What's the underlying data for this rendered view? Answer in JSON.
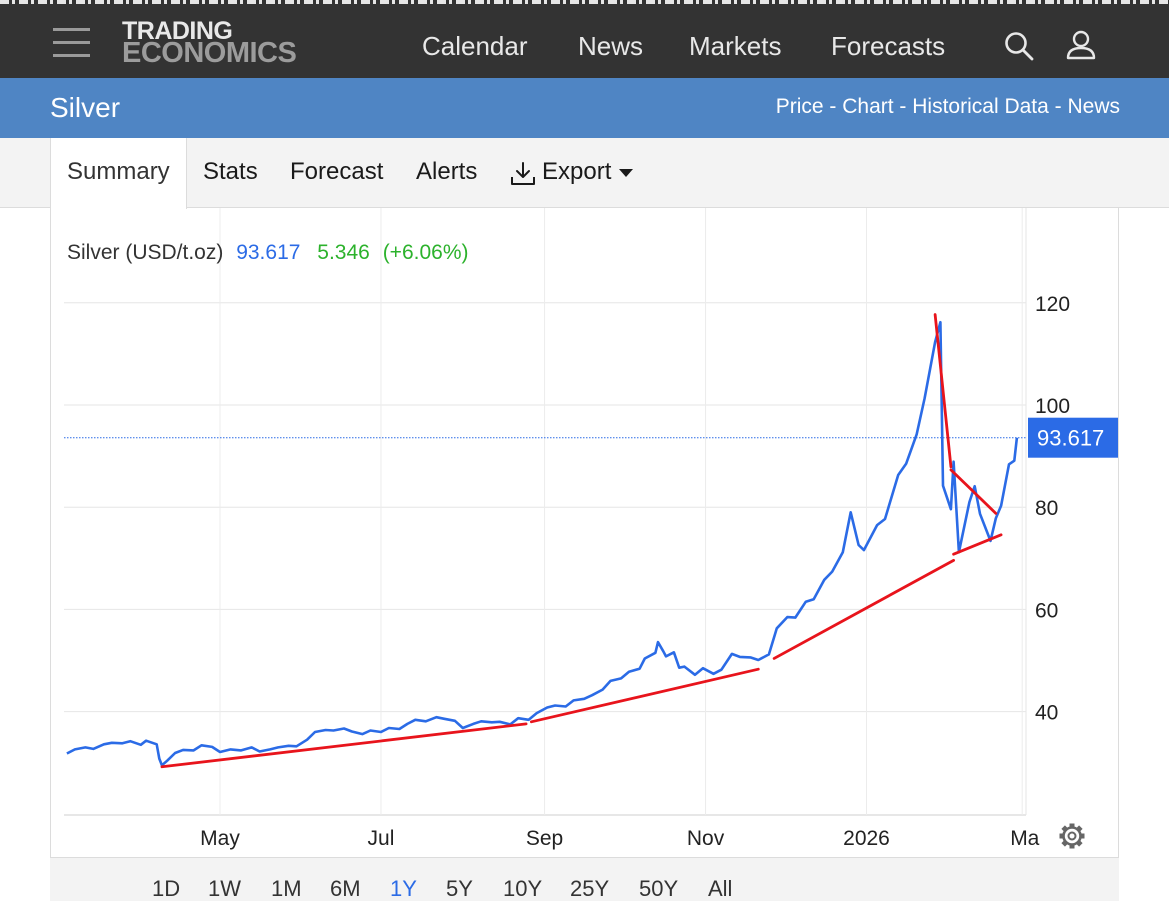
{
  "header": {
    "logo_line1": "TRADING",
    "logo_line2": "ECONOMICS",
    "nav": [
      "Calendar",
      "News",
      "Markets",
      "Forecasts"
    ],
    "icons": [
      "menu-icon",
      "search-icon",
      "user-icon"
    ]
  },
  "titlebar": {
    "title": "Silver",
    "crumbs": [
      "Price",
      "Chart",
      "Historical Data",
      "News"
    ],
    "separator": " - "
  },
  "tabs": {
    "items": [
      "Summary",
      "Stats",
      "Forecast",
      "Alerts",
      "Export"
    ],
    "active": "Summary"
  },
  "range_buttons": {
    "items": [
      "1D",
      "1W",
      "1M",
      "6M",
      "1Y",
      "5Y",
      "10Y",
      "25Y",
      "50Y",
      "All"
    ],
    "active": "1Y"
  },
  "colors": {
    "line": "#2b6be6",
    "trend": "#e8141c",
    "header_bg": "#333333",
    "titlebar_bg": "#4f85c4",
    "change_positive": "#2cb22c"
  },
  "chart_data": {
    "type": "line",
    "legend": {
      "series_label": "Silver (USD/t.oz)",
      "last": "93.617",
      "change": "5.346",
      "change_pct": "(+6.06%)"
    },
    "last_value_label": "93.617",
    "x_axis": {
      "ticks": [
        {
          "date": "2025-05-01",
          "label": "May"
        },
        {
          "date": "2025-07-01",
          "label": "Jul"
        },
        {
          "date": "2025-09-01",
          "label": "Sep"
        },
        {
          "date": "2025-11-01",
          "label": "Nov"
        },
        {
          "date": "2026-01-01",
          "label": "2026"
        },
        {
          "date": "2026-03-01",
          "label": "Ma"
        }
      ],
      "range": [
        "2025-03-01",
        "2026-03-01"
      ]
    },
    "y_axis": {
      "ticks": [
        40,
        60,
        80,
        100,
        120
      ],
      "range": [
        20,
        140
      ],
      "position": "right",
      "grid": true
    },
    "series": [
      {
        "points": [
          [
            "2025-03-04",
            31.8
          ],
          [
            "2025-03-07",
            32.6
          ],
          [
            "2025-03-11",
            33.0
          ],
          [
            "2025-03-14",
            32.7
          ],
          [
            "2025-03-18",
            33.6
          ],
          [
            "2025-03-21",
            33.9
          ],
          [
            "2025-03-25",
            33.8
          ],
          [
            "2025-03-28",
            34.2
          ],
          [
            "2025-04-01",
            33.5
          ],
          [
            "2025-04-03",
            34.3
          ],
          [
            "2025-04-07",
            33.6
          ],
          [
            "2025-04-08",
            30.8
          ],
          [
            "2025-04-09",
            29.5
          ],
          [
            "2025-04-11",
            30.4
          ],
          [
            "2025-04-14",
            31.9
          ],
          [
            "2025-04-17",
            32.5
          ],
          [
            "2025-04-21",
            32.4
          ],
          [
            "2025-04-24",
            33.4
          ],
          [
            "2025-04-28",
            33.1
          ],
          [
            "2025-05-01",
            32.1
          ],
          [
            "2025-05-05",
            32.6
          ],
          [
            "2025-05-09",
            32.4
          ],
          [
            "2025-05-13",
            33.0
          ],
          [
            "2025-05-16",
            32.2
          ],
          [
            "2025-05-20",
            32.6
          ],
          [
            "2025-05-23",
            33.0
          ],
          [
            "2025-05-27",
            33.3
          ],
          [
            "2025-05-30",
            33.2
          ],
          [
            "2025-06-03",
            34.5
          ],
          [
            "2025-06-06",
            36.0
          ],
          [
            "2025-06-10",
            36.4
          ],
          [
            "2025-06-13",
            36.3
          ],
          [
            "2025-06-17",
            36.7
          ],
          [
            "2025-06-20",
            36.1
          ],
          [
            "2025-06-24",
            35.6
          ],
          [
            "2025-06-27",
            36.3
          ],
          [
            "2025-07-01",
            36.0
          ],
          [
            "2025-07-04",
            36.8
          ],
          [
            "2025-07-08",
            36.6
          ],
          [
            "2025-07-11",
            37.6
          ],
          [
            "2025-07-14",
            38.4
          ],
          [
            "2025-07-18",
            38.1
          ],
          [
            "2025-07-22",
            38.9
          ],
          [
            "2025-07-25",
            38.6
          ],
          [
            "2025-07-29",
            38.2
          ],
          [
            "2025-08-01",
            36.8
          ],
          [
            "2025-08-05",
            37.6
          ],
          [
            "2025-08-08",
            38.1
          ],
          [
            "2025-08-12",
            37.9
          ],
          [
            "2025-08-15",
            38.0
          ],
          [
            "2025-08-19",
            37.5
          ],
          [
            "2025-08-22",
            38.7
          ],
          [
            "2025-08-26",
            38.4
          ],
          [
            "2025-08-29",
            39.7
          ],
          [
            "2025-09-02",
            40.8
          ],
          [
            "2025-09-05",
            41.2
          ],
          [
            "2025-09-09",
            41.0
          ],
          [
            "2025-09-12",
            42.2
          ],
          [
            "2025-09-16",
            42.5
          ],
          [
            "2025-09-19",
            43.2
          ],
          [
            "2025-09-23",
            44.3
          ],
          [
            "2025-09-26",
            46.0
          ],
          [
            "2025-09-30",
            46.5
          ],
          [
            "2025-10-03",
            47.8
          ],
          [
            "2025-10-07",
            48.4
          ],
          [
            "2025-10-09",
            50.4
          ],
          [
            "2025-10-13",
            51.5
          ],
          [
            "2025-10-14",
            53.6
          ],
          [
            "2025-10-16",
            51.8
          ],
          [
            "2025-10-17",
            50.8
          ],
          [
            "2025-10-20",
            51.6
          ],
          [
            "2025-10-22",
            48.6
          ],
          [
            "2025-10-24",
            48.8
          ],
          [
            "2025-10-28",
            47.2
          ],
          [
            "2025-10-31",
            48.5
          ],
          [
            "2025-11-04",
            47.4
          ],
          [
            "2025-11-07",
            48.2
          ],
          [
            "2025-11-11",
            51.3
          ],
          [
            "2025-11-14",
            50.7
          ],
          [
            "2025-11-18",
            50.6
          ],
          [
            "2025-11-21",
            50.1
          ],
          [
            "2025-11-25",
            51.2
          ],
          [
            "2025-11-28",
            56.3
          ],
          [
            "2025-12-02",
            58.5
          ],
          [
            "2025-12-05",
            58.4
          ],
          [
            "2025-12-09",
            61.5
          ],
          [
            "2025-12-12",
            62.0
          ],
          [
            "2025-12-16",
            65.8
          ],
          [
            "2025-12-19",
            67.4
          ],
          [
            "2025-12-23",
            71.2
          ],
          [
            "2025-12-26",
            79.0
          ],
          [
            "2025-12-29",
            72.6
          ],
          [
            "2025-12-31",
            71.6
          ],
          [
            "2026-01-05",
            76.5
          ],
          [
            "2026-01-08",
            77.7
          ],
          [
            "2026-01-13",
            86.3
          ],
          [
            "2026-01-16",
            88.5
          ],
          [
            "2026-01-20",
            94.2
          ],
          [
            "2026-01-23",
            101.3
          ],
          [
            "2026-01-27",
            112.3
          ],
          [
            "2026-01-29",
            116.2
          ],
          [
            "2026-01-30",
            84.2
          ],
          [
            "2026-02-02",
            79.6
          ],
          [
            "2026-02-03",
            88.9
          ],
          [
            "2026-02-05",
            71.2
          ],
          [
            "2026-02-09",
            81.0
          ],
          [
            "2026-02-11",
            84.1
          ],
          [
            "2026-02-13",
            78.7
          ],
          [
            "2026-02-17",
            73.4
          ],
          [
            "2026-02-19",
            77.8
          ],
          [
            "2026-02-21",
            80.3
          ],
          [
            "2026-02-24",
            88.4
          ],
          [
            "2026-02-26",
            89.1
          ],
          [
            "2026-02-27",
            93.6
          ]
        ]
      }
    ],
    "trendlines": [
      {
        "from": [
          "2025-04-09",
          29.2
        ],
        "to": [
          "2025-08-25",
          37.6
        ]
      },
      {
        "from": [
          "2025-08-27",
          38.0
        ],
        "to": [
          "2025-11-21",
          48.3
        ]
      },
      {
        "from": [
          "2025-11-27",
          50.4
        ],
        "to": [
          "2026-02-03",
          69.6
        ]
      },
      {
        "from": [
          "2026-02-03",
          70.8
        ],
        "to": [
          "2026-02-21",
          74.6
        ]
      },
      {
        "from": [
          "2026-01-27",
          117.7
        ],
        "to": [
          "2026-02-02",
          87.9
        ]
      },
      {
        "from": [
          "2026-02-02",
          87.3
        ],
        "to": [
          "2026-02-19",
          78.8
        ]
      }
    ]
  }
}
